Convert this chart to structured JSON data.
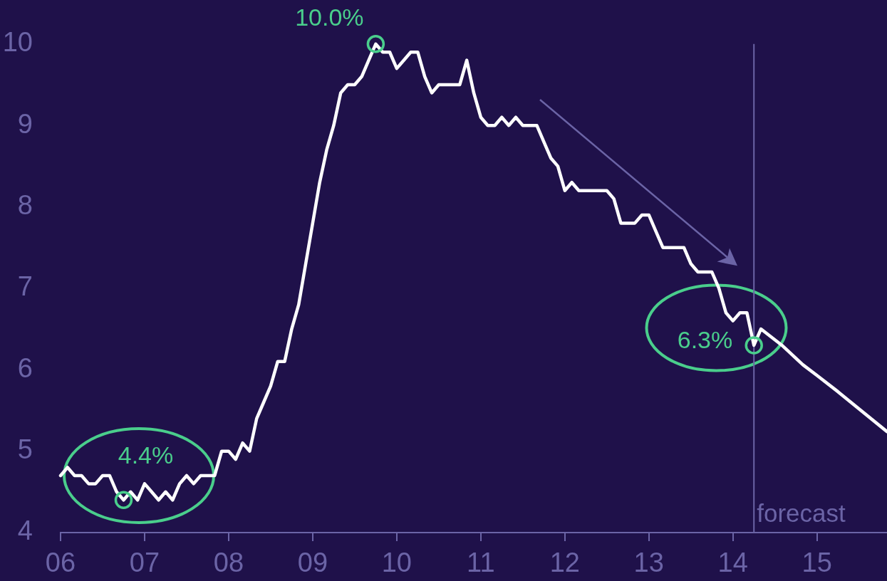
{
  "chart_data": {
    "type": "line",
    "color": "#ffffff",
    "x": [
      "2006-01",
      "2006-02",
      "2006-03",
      "2006-04",
      "2006-05",
      "2006-06",
      "2006-07",
      "2006-08",
      "2006-09",
      "2006-10",
      "2006-11",
      "2006-12",
      "2007-01",
      "2007-02",
      "2007-03",
      "2007-04",
      "2007-05",
      "2007-06",
      "2007-07",
      "2007-08",
      "2007-09",
      "2007-10",
      "2007-11",
      "2007-12",
      "2008-01",
      "2008-02",
      "2008-03",
      "2008-04",
      "2008-05",
      "2008-06",
      "2008-07",
      "2008-08",
      "2008-09",
      "2008-10",
      "2008-11",
      "2008-12",
      "2009-01",
      "2009-02",
      "2009-03",
      "2009-04",
      "2009-05",
      "2009-06",
      "2009-07",
      "2009-08",
      "2009-09",
      "2009-10",
      "2009-11",
      "2009-12",
      "2010-01",
      "2010-02",
      "2010-03",
      "2010-04",
      "2010-05",
      "2010-06",
      "2010-07",
      "2010-08",
      "2010-09",
      "2010-10",
      "2010-11",
      "2010-12",
      "2011-01",
      "2011-02",
      "2011-03",
      "2011-04",
      "2011-05",
      "2011-06",
      "2011-07",
      "2011-08",
      "2011-09",
      "2011-10",
      "2011-11",
      "2011-12",
      "2012-01",
      "2012-02",
      "2012-03",
      "2012-04",
      "2012-05",
      "2012-06",
      "2012-07",
      "2012-08",
      "2012-09",
      "2012-10",
      "2012-11",
      "2012-12",
      "2013-01",
      "2013-02",
      "2013-03",
      "2013-04",
      "2013-05",
      "2013-06",
      "2013-07",
      "2013-08",
      "2013-09",
      "2013-10",
      "2013-11",
      "2013-12",
      "2014-01",
      "2014-02",
      "2014-03",
      "2014-04",
      "2014-05",
      "2014-08",
      "2014-11",
      "2015-01",
      "2015-04",
      "2015-07",
      "2015-11"
    ],
    "values": [
      4.7,
      4.8,
      4.7,
      4.7,
      4.6,
      4.6,
      4.7,
      4.7,
      4.5,
      4.4,
      4.5,
      4.4,
      4.6,
      4.5,
      4.4,
      4.5,
      4.4,
      4.6,
      4.7,
      4.6,
      4.7,
      4.7,
      4.7,
      5.0,
      5.0,
      4.9,
      5.1,
      5.0,
      5.4,
      5.6,
      5.8,
      6.1,
      6.1,
      6.5,
      6.8,
      7.3,
      7.8,
      8.3,
      8.7,
      9.0,
      9.4,
      9.5,
      9.5,
      9.6,
      9.8,
      10.0,
      9.9,
      9.9,
      9.7,
      9.8,
      9.9,
      9.9,
      9.6,
      9.4,
      9.5,
      9.5,
      9.5,
      9.5,
      9.8,
      9.4,
      9.1,
      9.0,
      9.0,
      9.1,
      9.0,
      9.1,
      9.0,
      9.0,
      9.0,
      8.8,
      8.6,
      8.5,
      8.2,
      8.3,
      8.2,
      8.2,
      8.2,
      8.2,
      8.2,
      8.1,
      7.8,
      7.8,
      7.8,
      7.9,
      7.9,
      7.7,
      7.5,
      7.5,
      7.5,
      7.5,
      7.3,
      7.2,
      7.2,
      7.2,
      7.0,
      6.7,
      6.6,
      6.7,
      6.7,
      6.3,
      6.5,
      6.3,
      6.06,
      5.93,
      5.73,
      5.52,
      5.24
    ],
    "xlim": [
      "2006-01",
      "2015-11"
    ],
    "xticks": [
      {
        "value": "2006",
        "label": "06"
      },
      {
        "value": "2007",
        "label": "07"
      },
      {
        "value": "2008",
        "label": "08"
      },
      {
        "value": "2009",
        "label": "09"
      },
      {
        "value": "2010",
        "label": "10"
      },
      {
        "value": "2011",
        "label": "11"
      },
      {
        "value": "2012",
        "label": "12"
      },
      {
        "value": "2013",
        "label": "13"
      },
      {
        "value": "2014",
        "label": "14"
      },
      {
        "value": "2015",
        "label": "15"
      }
    ],
    "ylim": [
      4,
      10
    ],
    "yticks": [
      4,
      5,
      6,
      7,
      8,
      9,
      10
    ],
    "marker": "none",
    "line_style": "solid",
    "annotations": [
      {
        "text": "10.0%",
        "x": "2009-10",
        "y": 10.0
      },
      {
        "text": "4.4%",
        "x": "2006-10",
        "y": 4.4
      },
      {
        "text": "6.3%",
        "x": "2014-04",
        "y": 6.3
      }
    ],
    "ref_lines": [
      {
        "axis": "x",
        "value": "2014-04",
        "label": "forecast",
        "color": "#6b64a6"
      }
    ]
  }
}
